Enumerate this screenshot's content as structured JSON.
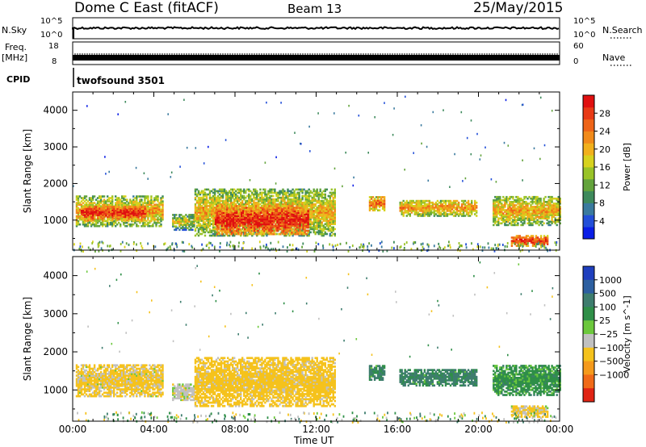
{
  "header": {
    "radar_title": "Dome C East (fitACF)",
    "beam_label": "Beam 13",
    "date_label": "25/May/2015"
  },
  "nsky_panel": {
    "left_label": "N.Sky",
    "left_ticks": [
      "10^5",
      "10^0"
    ],
    "right_label": "N.Search",
    "right_ticks": [
      "10^5",
      "10^0"
    ]
  },
  "freq_panel": {
    "left_label": "Freq.",
    "left_unit": "[MHz]",
    "left_ticks": [
      "18",
      "8"
    ],
    "right_label": "Nave",
    "right_ticks": [
      "60",
      "0"
    ]
  },
  "cpid_panel": {
    "label": "CPID",
    "program": "twofsound 3501"
  },
  "x_axis": {
    "tick_labels": [
      "00:00",
      "04:00",
      "08:00",
      "12:00",
      "16:00",
      "20:00",
      "00:00"
    ],
    "title": "Time UT"
  },
  "chart_data": [
    {
      "type": "heatmap",
      "title": "Power",
      "xlabel": "Time UT",
      "ylabel": "Slant Range [km]",
      "x_range_hours": [
        0,
        24
      ],
      "ylim": [
        180,
        4500
      ],
      "y_ticks": [
        1000,
        2000,
        3000,
        4000
      ],
      "colorbar": {
        "label": "Power [dB]",
        "tick_labels": [
          "4",
          "8",
          "12",
          "16",
          "20",
          "24",
          "28"
        ],
        "range": [
          0,
          32
        ],
        "colors": [
          "#0a1ee6",
          "#234fd8",
          "#3a7a9e",
          "#3e8a5c",
          "#63a33c",
          "#99c328",
          "#d7d21e",
          "#f1b01c",
          "#f18a1a",
          "#ee6418",
          "#e83a16",
          "#e01010"
        ]
      },
      "regions": [
        {
          "t0": 0.15,
          "t1": 4.4,
          "r0": 820,
          "r1": 1650,
          "v": 18
        },
        {
          "t0": 0.4,
          "t1": 3.6,
          "r0": 980,
          "r1": 1380,
          "v": 26
        },
        {
          "t0": 4.9,
          "t1": 6.0,
          "r0": 720,
          "r1": 1150,
          "v": 14
        },
        {
          "t0": 6.0,
          "t1": 12.9,
          "r0": 560,
          "r1": 1850,
          "v": 17
        },
        {
          "t0": 7.0,
          "t1": 11.6,
          "r0": 600,
          "r1": 1380,
          "v": 27
        },
        {
          "t0": 14.6,
          "t1": 15.4,
          "r0": 1250,
          "r1": 1650,
          "v": 22
        },
        {
          "t0": 16.1,
          "t1": 19.9,
          "r0": 1100,
          "r1": 1550,
          "v": 19
        },
        {
          "t0": 20.7,
          "t1": 24.0,
          "r0": 850,
          "r1": 1650,
          "v": 18
        },
        {
          "t0": 21.6,
          "t1": 23.4,
          "r0": 280,
          "r1": 560,
          "v": 26
        }
      ]
    },
    {
      "type": "heatmap",
      "title": "Velocity",
      "xlabel": "Time UT",
      "ylabel": "Slant Range [km]",
      "x_range_hours": [
        0,
        24
      ],
      "ylim": [
        180,
        4500
      ],
      "y_ticks": [
        1000,
        2000,
        3000,
        4000
      ],
      "colorbar": {
        "label": "Velocity [m s^-1]",
        "tick_labels": [
          "1000",
          "500",
          "100",
          "25",
          "−25",
          "−100",
          "−500",
          "−1000"
        ],
        "colors": [
          "#1f3fbe",
          "#2d5fa0",
          "#3e7d6e",
          "#2f8f48",
          "#6cc83c",
          "#c0c0c0",
          "#f5c21c",
          "#f59a1c",
          "#f06a18",
          "#e02414"
        ]
      },
      "regions": [
        {
          "t0": 0.15,
          "t1": 4.4,
          "r0": 820,
          "r1": 1650,
          "v": -150
        },
        {
          "t0": 4.9,
          "t1": 6.0,
          "r0": 720,
          "r1": 1150,
          "v": -60
        },
        {
          "t0": 6.0,
          "t1": 12.9,
          "r0": 560,
          "r1": 1850,
          "v": -250
        },
        {
          "t0": 14.6,
          "t1": 15.4,
          "r0": 1250,
          "r1": 1650,
          "v": 120
        },
        {
          "t0": 16.1,
          "t1": 19.9,
          "r0": 1100,
          "r1": 1550,
          "v": 150
        },
        {
          "t0": 20.7,
          "t1": 24.0,
          "r0": 850,
          "r1": 1650,
          "v": 60
        },
        {
          "t0": 21.6,
          "t1": 23.4,
          "r0": 280,
          "r1": 560,
          "v": -120
        }
      ]
    }
  ]
}
